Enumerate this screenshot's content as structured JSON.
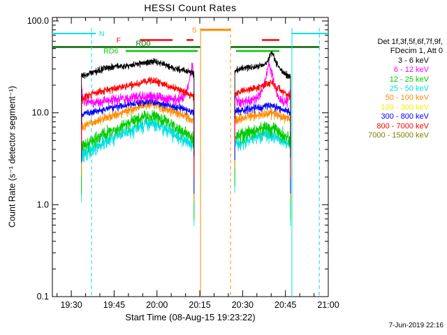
{
  "title": "HESSI Count Rates",
  "xlabel": "Start Time (08-Aug-15 19:23:22)",
  "ylabel": "Count Rate (s⁻¹ detector segment⁻¹)",
  "timestamp": "7-Jun-2019 22:16",
  "legend": {
    "header1": "Det 1f,3f,5f,6f,7f,9f,",
    "header2": "FDecim 1, Att 0",
    "entries": [
      {
        "label": "3 - 6 keV",
        "color": "#000000"
      },
      {
        "label": "6 - 12 keV",
        "color": "#ff00ff"
      },
      {
        "label": "12 - 25 keV",
        "color": "#00cc00"
      },
      {
        "label": "25 - 50 keV",
        "color": "#00e0e0"
      },
      {
        "label": "50 - 100 keV",
        "color": "#ff8c00"
      },
      {
        "label": "100 - 300 keV",
        "color": "#f0f000"
      },
      {
        "label": "300 - 800 keV",
        "color": "#0000ff"
      },
      {
        "label": "800 - 7000 keV",
        "color": "#ff0000"
      },
      {
        "label": "7000 - 15000 keV",
        "color": "#808000"
      }
    ]
  },
  "chart_data": {
    "type": "line",
    "title": "HESSI Count Rates",
    "xlabel": "Start Time (08-Aug-15 19:23:22)",
    "ylabel": "Count Rate (s-1 detector segment-1)",
    "y_scale": "log",
    "ylim": [
      0.1,
      100
    ],
    "xlim_minutes": [
      0,
      96.63
    ],
    "x_ticks": [
      {
        "t": 6.63,
        "label": "19:30"
      },
      {
        "t": 21.63,
        "label": "19:45"
      },
      {
        "t": 36.63,
        "label": "20:00"
      },
      {
        "t": 51.63,
        "label": "20:15"
      },
      {
        "t": 66.63,
        "label": "20:30"
      },
      {
        "t": 81.63,
        "label": "20:45"
      },
      {
        "t": 96.63,
        "label": "21:00"
      }
    ],
    "y_ticks": [
      {
        "v": 100,
        "label": "100.0"
      },
      {
        "v": 10,
        "label": "10.0"
      },
      {
        "v": 1,
        "label": "1.0"
      },
      {
        "v": 0.1,
        "label": "0.1"
      }
    ],
    "flags": [
      {
        "name": "night",
        "label": "N",
        "color": "#00e0e0",
        "level": 73,
        "label_t": 17.3,
        "lw": 2,
        "bars": [
          [
            0,
            15.2
          ],
          [
            83.9,
            96.63
          ]
        ]
      },
      {
        "name": "saa",
        "label": "S",
        "color": "#ff8c00",
        "level": 80,
        "label_t": 49.7,
        "lw": 3,
        "bars": [
          [
            51.9,
            62.4
          ]
        ]
      },
      {
        "name": "flare",
        "label": "F",
        "color": "#ff0000",
        "level": 62,
        "label_t": 23.2,
        "lw": 2.5,
        "bars": [
          [
            30.6,
            42.1
          ],
          [
            47.0,
            49.4
          ],
          [
            73.4,
            79.5
          ]
        ]
      },
      {
        "name": "decim-rd0",
        "label": "RD0",
        "color": "#006600",
        "level": 52,
        "label_t": 31.8,
        "label_level": 57,
        "lw": 2.5,
        "bars": [
          [
            0,
            51.9
          ],
          [
            62.4,
            93.5
          ]
        ]
      },
      {
        "name": "decim-rd6",
        "label": "RD6",
        "color": "#00cc00",
        "level": 47,
        "label_t": 20.5,
        "lw": 2.5,
        "bars": [
          [
            25.7,
            50.9
          ],
          [
            64.3,
            79.5
          ]
        ]
      }
    ],
    "vlines": [
      {
        "t": 13.7,
        "color": "#00e0e0",
        "dash": "5,4"
      },
      {
        "t": 83.9,
        "color": "#00e0e0",
        "dash": ""
      },
      {
        "t": 93.5,
        "color": "#00e0e0",
        "dash": "5,4"
      },
      {
        "t": 51.9,
        "color": "#ff8c00",
        "dash": ""
      },
      {
        "t": 62.4,
        "color": "#ff8c00",
        "dash": "5,4"
      }
    ],
    "series": [
      {
        "band": "25 - 50 keV",
        "color": "#00e0e0",
        "noise": 0.13,
        "segments": [
          [
            [
              10.2,
              3.5
            ],
            [
              13,
              3.9
            ],
            [
              16,
              4.4
            ],
            [
              19,
              4.9
            ],
            [
              22,
              5.4
            ],
            [
              25,
              5.9
            ],
            [
              28,
              6.5
            ],
            [
              31,
              7.1
            ],
            [
              33,
              7.7
            ],
            [
              35,
              7.7
            ],
            [
              37,
              7.3
            ],
            [
              39,
              6.8
            ],
            [
              41,
              6.3
            ],
            [
              43,
              5.8
            ],
            [
              45,
              5.3
            ],
            [
              47,
              4.9
            ],
            [
              49.6,
              4.5
            ]
          ],
          [
            [
              63.9,
              4.5
            ],
            [
              66,
              4.8
            ],
            [
              69,
              5.1
            ],
            [
              72,
              5.5
            ],
            [
              75,
              5.8
            ],
            [
              77,
              5.6
            ],
            [
              79,
              5.3
            ],
            [
              81,
              4.9
            ],
            [
              83.4,
              4.5
            ]
          ]
        ]
      },
      {
        "band": "12 - 25 keV",
        "color": "#00cc00",
        "noise": 0.13,
        "segments": [
          [
            [
              10.2,
              4.3
            ],
            [
              13,
              4.8
            ],
            [
              16,
              5.3
            ],
            [
              19,
              6
            ],
            [
              22,
              6.5
            ],
            [
              25,
              7.1
            ],
            [
              28,
              7.9
            ],
            [
              31,
              8.7
            ],
            [
              33,
              9.3
            ],
            [
              35,
              9.3
            ],
            [
              37,
              8.8
            ],
            [
              39,
              8.2
            ],
            [
              41,
              7.6
            ],
            [
              43,
              7
            ],
            [
              45,
              6.4
            ],
            [
              47,
              5.9
            ],
            [
              49.6,
              5.3
            ]
          ],
          [
            [
              63.9,
              5.3
            ],
            [
              66,
              5.7
            ],
            [
              69,
              6.1
            ],
            [
              72,
              6.5
            ],
            [
              75,
              6.9
            ],
            [
              77,
              6.7
            ],
            [
              79,
              6.3
            ],
            [
              81,
              5.7
            ],
            [
              83.4,
              5.3
            ]
          ]
        ]
      },
      {
        "band": "50 - 100 keV",
        "color": "#ff8c00",
        "noise": 0.09,
        "segments": [
          [
            [
              10.2,
              7
            ],
            [
              13,
              7.6
            ],
            [
              16,
              8.2
            ],
            [
              19,
              9
            ],
            [
              22,
              9.6
            ],
            [
              25,
              10.2
            ],
            [
              28,
              11
            ],
            [
              31,
              12
            ],
            [
              34,
              12.6
            ],
            [
              36,
              12.2
            ],
            [
              38,
              11.6
            ],
            [
              40,
              11
            ],
            [
              43,
              10.2
            ],
            [
              46,
              9.3
            ],
            [
              48,
              8.7
            ],
            [
              49.6,
              8.2
            ]
          ],
          [
            [
              63.9,
              8.2
            ],
            [
              66,
              8.6
            ],
            [
              69,
              9
            ],
            [
              72,
              9.6
            ],
            [
              75,
              10
            ],
            [
              77,
              10
            ],
            [
              79,
              9.5
            ],
            [
              81,
              9
            ],
            [
              83.4,
              8.6
            ]
          ]
        ]
      },
      {
        "band": "300 - 800 keV",
        "color": "#0000ff",
        "noise": 0.07,
        "segments": [
          [
            [
              10.2,
              9.5
            ],
            [
              13,
              10
            ],
            [
              16,
              10.5
            ],
            [
              19,
              11
            ],
            [
              22,
              11.5
            ],
            [
              25,
              12
            ],
            [
              28,
              12.5
            ],
            [
              31,
              13
            ],
            [
              34,
              13.4
            ],
            [
              36,
              13.2
            ],
            [
              38,
              12.8
            ],
            [
              40,
              12.3
            ],
            [
              43,
              11.6
            ],
            [
              46,
              11
            ],
            [
              49.6,
              10.2
            ]
          ],
          [
            [
              63.9,
              10.2
            ],
            [
              66,
              10.6
            ],
            [
              69,
              11
            ],
            [
              72,
              11.5
            ],
            [
              75,
              12
            ],
            [
              77,
              12
            ],
            [
              79,
              11.3
            ],
            [
              81,
              10.7
            ],
            [
              83.4,
              10.2
            ]
          ]
        ]
      },
      {
        "band": "6 - 12 keV",
        "color": "#ff00ff",
        "noise": 0.1,
        "segments": [
          [
            [
              10.2,
              20
            ],
            [
              10.8,
              14
            ],
            [
              12,
              13
            ],
            [
              15,
              13
            ],
            [
              18,
              13.5
            ],
            [
              21,
              14
            ],
            [
              24,
              14
            ],
            [
              27,
              14.5
            ],
            [
              30,
              15
            ],
            [
              33,
              15
            ],
            [
              36,
              15
            ],
            [
              38,
              14.5
            ],
            [
              41,
              14
            ],
            [
              44,
              14
            ],
            [
              46,
              15
            ],
            [
              47.5,
              19
            ],
            [
              48.4,
              27
            ],
            [
              48.9,
              33
            ],
            [
              49.3,
              30
            ],
            [
              49.6,
              22
            ]
          ],
          [
            [
              63.9,
              15
            ],
            [
              65,
              13.5
            ],
            [
              67,
              13
            ],
            [
              69,
              13.5
            ],
            [
              71,
              14
            ],
            [
              73,
              16
            ],
            [
              74.2,
              20
            ],
            [
              75.2,
              28
            ],
            [
              75.8,
              34
            ],
            [
              76.5,
              30
            ],
            [
              77.2,
              25
            ],
            [
              78,
              19
            ],
            [
              79,
              15
            ],
            [
              80,
              13.5
            ],
            [
              81.2,
              13
            ],
            [
              82.4,
              14
            ],
            [
              83.4,
              18
            ]
          ]
        ]
      },
      {
        "band": "800 - 7000 keV",
        "color": "#ff0000",
        "noise": 0.07,
        "segments": [
          [
            [
              10.2,
              14
            ],
            [
              12,
              15
            ],
            [
              14,
              16
            ],
            [
              16,
              17
            ],
            [
              18,
              17.5
            ],
            [
              20,
              18
            ],
            [
              23,
              18.5
            ],
            [
              26,
              19.5
            ],
            [
              29,
              20.5
            ],
            [
              32,
              22
            ],
            [
              34,
              22.5
            ],
            [
              36,
              22
            ],
            [
              38,
              21
            ],
            [
              40,
              20
            ],
            [
              42,
              19
            ],
            [
              44,
              18
            ],
            [
              46,
              17
            ],
            [
              48,
              16
            ],
            [
              49.6,
              15
            ]
          ],
          [
            [
              63.9,
              16
            ],
            [
              66,
              17
            ],
            [
              68,
              17.5
            ],
            [
              70,
              18
            ],
            [
              72,
              19
            ],
            [
              74,
              20
            ],
            [
              76,
              21
            ],
            [
              77.2,
              21
            ],
            [
              78.4,
              19
            ],
            [
              79.5,
              18
            ],
            [
              80.6,
              17
            ],
            [
              82,
              16
            ],
            [
              83.4,
              15
            ]
          ]
        ]
      },
      {
        "band": "3 - 6 keV",
        "color": "#000000",
        "noise": 0.06,
        "segments": [
          [
            [
              10.2,
              25
            ],
            [
              12,
              26
            ],
            [
              14,
              28
            ],
            [
              16,
              29
            ],
            [
              18,
              30
            ],
            [
              20,
              31
            ],
            [
              22,
              32
            ],
            [
              25,
              32.5
            ],
            [
              28,
              33
            ],
            [
              30,
              34
            ],
            [
              32,
              35
            ],
            [
              34,
              36
            ],
            [
              36,
              36
            ],
            [
              38,
              35
            ],
            [
              40,
              33
            ],
            [
              42,
              31
            ],
            [
              44,
              30
            ],
            [
              46,
              29
            ],
            [
              48,
              28
            ],
            [
              49.6,
              26
            ]
          ],
          [
            [
              63.9,
              29
            ],
            [
              66,
              30
            ],
            [
              68,
              31
            ],
            [
              70,
              31.5
            ],
            [
              72,
              32
            ],
            [
              74,
              33
            ],
            [
              75.5,
              36
            ],
            [
              76.4,
              44
            ],
            [
              77,
              45
            ],
            [
              77.6,
              40
            ],
            [
              78.4,
              35
            ],
            [
              79.4,
              31
            ],
            [
              80.5,
              28
            ],
            [
              82,
              26
            ],
            [
              83.4,
              25
            ]
          ]
        ]
      }
    ]
  }
}
